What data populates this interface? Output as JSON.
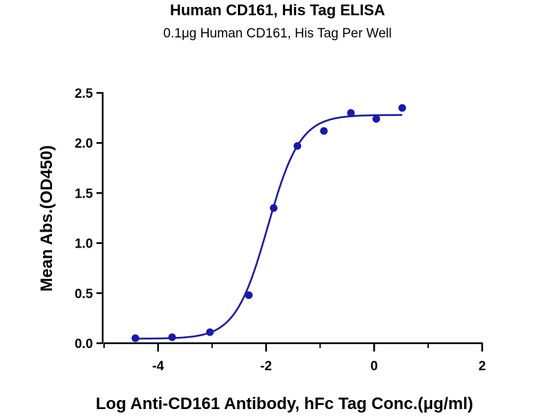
{
  "chart_data": {
    "type": "scatter",
    "title": "Human CD161, His Tag  ELISA",
    "subtitle": "0.1μg Human CD161, His Tag Per Well",
    "xlabel": "Log Anti-CD161 Antibody, hFc Tag Conc.(μg/ml)",
    "ylabel": "Mean Abs.(OD450)",
    "xlim": [
      -5,
      2
    ],
    "ylim": [
      0,
      2.5
    ],
    "x_ticks": [
      -4,
      -2,
      0,
      2
    ],
    "y_ticks": [
      0.0,
      0.5,
      1.0,
      1.5,
      2.0,
      2.5
    ],
    "x_tick_labels": [
      "-4",
      "-2",
      "0",
      "2"
    ],
    "y_tick_labels": [
      "0.0",
      "0.5",
      "1.0",
      "1.5",
      "2.0",
      "2.5"
    ],
    "grid": false,
    "series": [
      {
        "color": "#1a1aa8",
        "points": [
          {
            "x": -4.42,
            "y": 0.05
          },
          {
            "x": -3.74,
            "y": 0.06
          },
          {
            "x": -3.04,
            "y": 0.11
          },
          {
            "x": -2.32,
            "y": 0.48
          },
          {
            "x": -1.86,
            "y": 1.35
          },
          {
            "x": -1.42,
            "y": 1.97
          },
          {
            "x": -0.93,
            "y": 2.12
          },
          {
            "x": -0.43,
            "y": 2.3
          },
          {
            "x": 0.04,
            "y": 2.24
          },
          {
            "x": 0.52,
            "y": 2.35
          }
        ],
        "fit": {
          "model": "4PL",
          "bottom": 0.045,
          "top": 2.28,
          "log_ec50": -1.97,
          "hill_slope": 1.45,
          "x_range": [
            -4.42,
            0.52
          ]
        }
      }
    ]
  }
}
